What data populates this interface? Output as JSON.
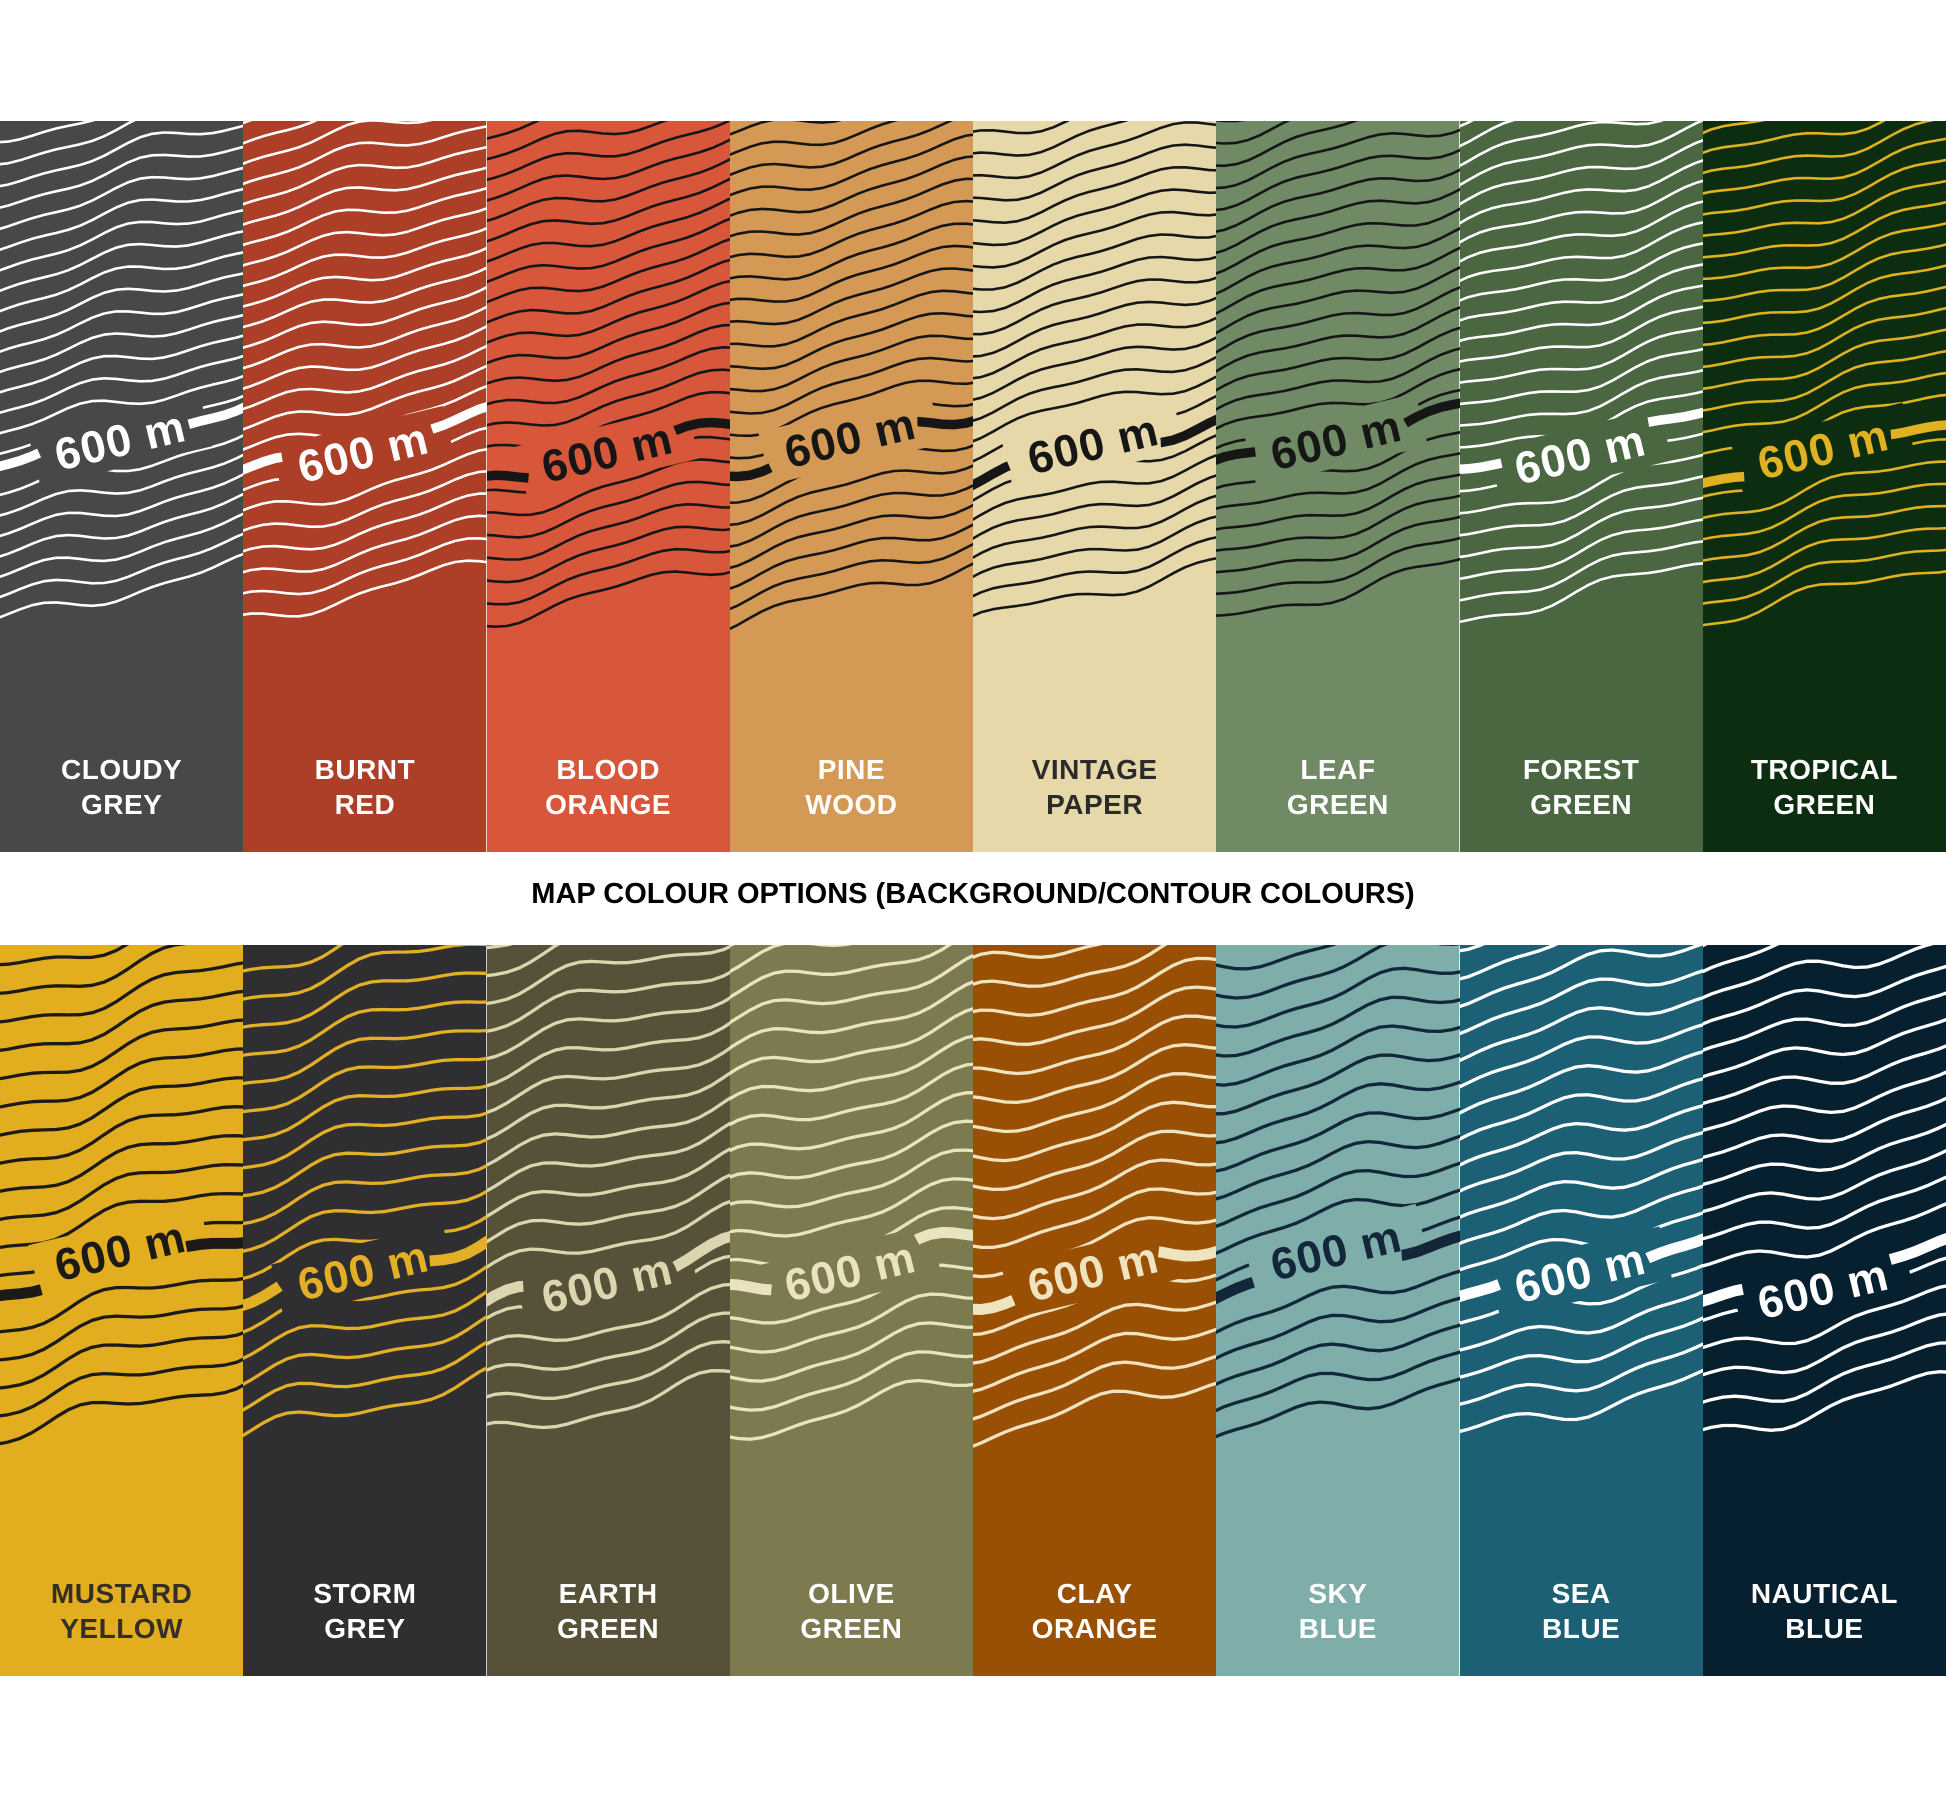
{
  "title": "MAP COLOUR OPTIONS (BACKGROUND/CONTOUR COLOURS)",
  "contour_label": "600 m",
  "rows": [
    {
      "id": "top",
      "swatches": [
        {
          "name": "Cloudy Grey",
          "label": [
            "CLOUDY",
            "GREY"
          ],
          "bg": "#474849",
          "contour": "#ffffff",
          "label_color": "#ffffff"
        },
        {
          "name": "Burnt Red",
          "label": [
            "BURNT",
            "RED"
          ],
          "bg": "#ad3e28",
          "contour": "#ffffff",
          "label_color": "#ffffff"
        },
        {
          "name": "Blood Orange",
          "label": [
            "BLOOD",
            "ORANGE"
          ],
          "bg": "#d8573a",
          "contour": "#161616",
          "label_color": "#ffffff"
        },
        {
          "name": "Pine Wood",
          "label": [
            "PINE",
            "WOOD"
          ],
          "bg": "#d49a55",
          "contour": "#161616",
          "label_color": "#ffffff"
        },
        {
          "name": "Vintage Paper",
          "label": [
            "VINTAGE",
            "PAPER"
          ],
          "bg": "#e7d8a9",
          "contour": "#161616",
          "label_color": "#2b2b2b"
        },
        {
          "name": "Leaf Green",
          "label": [
            "LEAF",
            "GREEN"
          ],
          "bg": "#6f8a64",
          "contour": "#161616",
          "label_color": "#ffffff"
        },
        {
          "name": "Forest Green",
          "label": [
            "FOREST",
            "GREEN"
          ],
          "bg": "#4a6742",
          "contour": "#ffffff",
          "label_color": "#ffffff"
        },
        {
          "name": "Tropical Green",
          "label": [
            "TROPICAL",
            "GREEN"
          ],
          "bg": "#0c2d10",
          "contour": "#e0b120",
          "label_color": "#ffffff"
        }
      ]
    },
    {
      "id": "bottom",
      "swatches": [
        {
          "name": "Mustard Yellow",
          "label": [
            "MUSTARD",
            "YELLOW"
          ],
          "bg": "#e2ae20",
          "contour": "#1c1a17",
          "label_color": "#332f28"
        },
        {
          "name": "Storm Grey",
          "label": [
            "STORM",
            "GREY"
          ],
          "bg": "#2f2e30",
          "contour": "#e2af26",
          "label_color": "#ffffff"
        },
        {
          "name": "Earth Green",
          "label": [
            "EARTH",
            "GREEN"
          ],
          "bg": "#565138",
          "contour": "#dcd6b0",
          "label_color": "#ffffff"
        },
        {
          "name": "Olive Green",
          "label": [
            "OLIVE",
            "GREEN"
          ],
          "bg": "#7e7a50",
          "contour": "#e9e3bf",
          "label_color": "#ffffff"
        },
        {
          "name": "Clay Orange",
          "label": [
            "CLAY",
            "ORANGE"
          ],
          "bg": "#9a5004",
          "contour": "#f0e4c0",
          "label_color": "#ffffff"
        },
        {
          "name": "Sky Blue",
          "label": [
            "SKY",
            "BLUE"
          ],
          "bg": "#7fadaa",
          "contour": "#12283a",
          "label_color": "#ffffff"
        },
        {
          "name": "Sea Blue",
          "label": [
            "SEA",
            "BLUE"
          ],
          "bg": "#1b6074",
          "contour": "#ffffff",
          "label_color": "#ffffff"
        },
        {
          "name": "Nautical Blue",
          "label": [
            "NAUTICAL",
            "BLUE"
          ],
          "bg": "#06202f",
          "contour": "#ffffff",
          "label_color": "#ffffff"
        }
      ]
    }
  ]
}
